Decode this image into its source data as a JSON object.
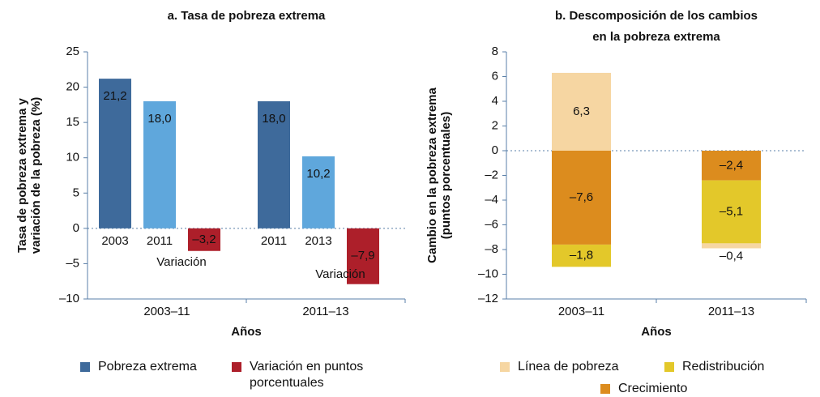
{
  "chart_data": [
    {
      "type": "bar",
      "title": "a. Tasa de pobreza extrema",
      "y_label": [
        "Tasa de pobreza extrema y",
        "variación de la pobreza (%)"
      ],
      "x_label": "Años",
      "ylim": [
        -10,
        25
      ],
      "yticks": [
        {
          "value": -10,
          "label": "–10"
        },
        {
          "value": -5,
          "label": "–5"
        },
        0,
        5,
        10,
        15,
        20,
        25
      ],
      "groups": [
        {
          "name": "2003–11",
          "categories": [
            "2003",
            "2011",
            "Variación"
          ],
          "values": [
            21.2,
            18.0,
            -3.2
          ],
          "value_labels": [
            "21,2",
            "18,0",
            "–3,2"
          ],
          "colors": [
            "#3e6a9b",
            "#5fa7dc",
            "#ad1f2a"
          ]
        },
        {
          "name": "2011–13",
          "categories": [
            "2011",
            "2013",
            "Variación"
          ],
          "values": [
            18.0,
            10.2,
            -7.9
          ],
          "value_labels": [
            "18,0",
            "10,2",
            "–7,9"
          ],
          "colors": [
            "#3e6a9b",
            "#5fa7dc",
            "#ad1f2a"
          ]
        }
      ],
      "legend": [
        {
          "name": "Pobreza extrema",
          "color": "#3e6a9b"
        },
        {
          "name": "Variación en puntos porcentuales",
          "color": "#ad1f2a"
        }
      ]
    },
    {
      "type": "stacked_bar",
      "title": [
        "b. Descomposición de los cambios",
        "en la pobreza extrema"
      ],
      "y_label": [
        "Cambio en la pobreza extrema",
        "(puntos porcentuales)"
      ],
      "x_label": "Años",
      "ylim": [
        -12,
        8
      ],
      "yticks": [
        {
          "value": -12,
          "label": "–12"
        },
        {
          "value": -10,
          "label": "–10"
        },
        {
          "value": -8,
          "label": "–8"
        },
        {
          "value": -6,
          "label": "–6"
        },
        {
          "value": -4,
          "label": "–4"
        },
        {
          "value": -2,
          "label": "–2"
        },
        0,
        2,
        4,
        6,
        8
      ],
      "categories": [
        "2003–11",
        "2011–13"
      ],
      "series": [
        {
          "name": "Crecimiento",
          "color": "#dc8c1e",
          "values": [
            -7.6,
            -2.4
          ],
          "value_labels": [
            "–7,6",
            "–2,4"
          ]
        },
        {
          "name": "Redistribución",
          "color": "#e3c82a",
          "values": [
            -1.8,
            -5.1
          ],
          "value_labels": [
            "–1,8",
            "–5,1"
          ]
        },
        {
          "name": "Línea de pobreza",
          "color": "#f6d6a2",
          "values": [
            6.3,
            -0.4
          ],
          "value_labels": [
            "6,3",
            "–0,4"
          ]
        }
      ]
    }
  ]
}
